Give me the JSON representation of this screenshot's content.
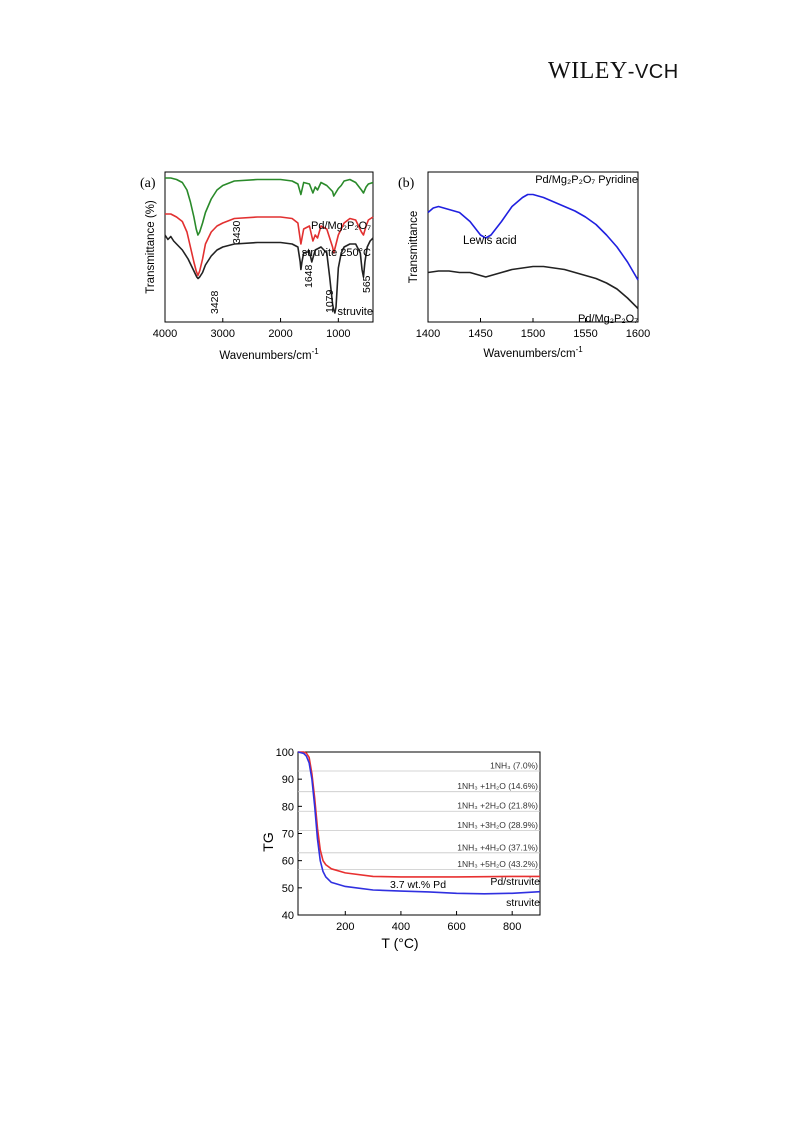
{
  "header": {
    "publisher": "WILEY-VCH",
    "publisher_main": "WILEY",
    "publisher_suffix": "-VCH"
  },
  "chart_data": [
    {
      "type": "line",
      "panel_label": "(a)",
      "xlabel": "Wavenumbers/cm",
      "xlabel_exp": "-1",
      "ylabel": "Transmittance (%)",
      "xlim": [
        4000,
        400
      ],
      "xticks": [
        4000,
        3000,
        2000,
        1000
      ],
      "series": [
        {
          "name": "Pd/Mg₂P₂O₇",
          "color": "#2a8a2a",
          "x": [
            4000,
            3900,
            3800,
            3700,
            3620,
            3560,
            3500,
            3460,
            3430,
            3400,
            3350,
            3300,
            3200,
            3100,
            3000,
            2800,
            2400,
            2000,
            1800,
            1700,
            1648,
            1600,
            1500,
            1440,
            1400,
            1360,
            1300,
            1200,
            1100,
            1079,
            1000,
            950,
            900,
            800,
            700,
            600,
            565,
            520,
            480,
            400
          ],
          "y": [
            96,
            96,
            95,
            93,
            88,
            80,
            70,
            62,
            58,
            60,
            66,
            73,
            82,
            88,
            91,
            94,
            95,
            95,
            94,
            92,
            85,
            93,
            92,
            86,
            90,
            88,
            93,
            91,
            87,
            84,
            89,
            91,
            94,
            95,
            93,
            88,
            86,
            90,
            92,
            93
          ]
        },
        {
          "name": "struvite 250°C",
          "color": "#e23030",
          "x": [
            4000,
            3900,
            3800,
            3700,
            3620,
            3560,
            3500,
            3460,
            3430,
            3400,
            3350,
            3300,
            3200,
            3100,
            3000,
            2800,
            2400,
            2000,
            1800,
            1700,
            1648,
            1600,
            1500,
            1440,
            1400,
            1360,
            1300,
            1200,
            1100,
            1079,
            1000,
            950,
            900,
            800,
            700,
            600,
            565,
            520,
            480,
            400
          ],
          "y": [
            72,
            72,
            70,
            67,
            60,
            50,
            40,
            34,
            31,
            34,
            42,
            52,
            60,
            64,
            66,
            69,
            70,
            70,
            69,
            66,
            52,
            62,
            64,
            54,
            58,
            56,
            64,
            62,
            50,
            46,
            58,
            62,
            66,
            69,
            68,
            60,
            58,
            64,
            68,
            70
          ]
        },
        {
          "name": "struvite",
          "color": "#222222",
          "x": [
            4000,
            3950,
            3900,
            3850,
            3800,
            3700,
            3600,
            3500,
            3450,
            3428,
            3400,
            3350,
            3300,
            3200,
            3100,
            3000,
            2800,
            2400,
            2000,
            1800,
            1700,
            1660,
            1648,
            1630,
            1600,
            1500,
            1460,
            1430,
            1400,
            1300,
            1200,
            1150,
            1100,
            1079,
            1060,
            1040,
            1000,
            950,
            900,
            800,
            700,
            620,
            590,
            565,
            540,
            500,
            450,
            400
          ],
          "y": [
            58,
            55,
            57,
            54,
            52,
            48,
            42,
            34,
            30,
            29,
            30,
            33,
            38,
            44,
            48,
            50,
            52,
            53,
            53,
            52,
            50,
            40,
            35,
            40,
            46,
            47,
            40,
            44,
            48,
            50,
            46,
            30,
            12,
            8,
            6,
            10,
            36,
            46,
            50,
            52,
            52,
            46,
            35,
            30,
            40,
            50,
            54,
            56
          ]
        }
      ],
      "annotations": [
        "3430",
        "3428",
        "1648",
        "1079",
        "565"
      ]
    },
    {
      "type": "line",
      "panel_label": "(b)",
      "xlabel": "Wavenumbers/cm",
      "xlabel_exp": "-1",
      "ylabel": "Transmittance",
      "xlim": [
        1400,
        1600
      ],
      "xticks": [
        1400,
        1450,
        1500,
        1550,
        1600
      ],
      "series": [
        {
          "name": "Pd/Mg₂P₂O₇ Pyridine",
          "color": "#2020e0",
          "x": [
            1400,
            1405,
            1410,
            1420,
            1430,
            1440,
            1450,
            1455,
            1460,
            1470,
            1480,
            1490,
            1495,
            1500,
            1510,
            1520,
            1530,
            1540,
            1550,
            1560,
            1570,
            1580,
            1590,
            1600
          ],
          "y": [
            73,
            76,
            77,
            75,
            73,
            67,
            58,
            56,
            58,
            67,
            77,
            83,
            85,
            85,
            83,
            80,
            77,
            74,
            70,
            65,
            58,
            50,
            40,
            28
          ]
        },
        {
          "name": "Pd/Mg₂P₂O₇",
          "color": "#222222",
          "x": [
            1400,
            1410,
            1420,
            1430,
            1440,
            1450,
            1455,
            1460,
            1470,
            1480,
            1490,
            1500,
            1510,
            1520,
            1530,
            1540,
            1550,
            1560,
            1570,
            1580,
            1590,
            1600
          ],
          "y": [
            33,
            34,
            34,
            33,
            33,
            31,
            30,
            31,
            33,
            35,
            36,
            37,
            37,
            36,
            35,
            33,
            31,
            29,
            26,
            22,
            16,
            9
          ]
        }
      ],
      "annotations": [
        "Lewis acid"
      ]
    },
    {
      "type": "line",
      "xlabel": "T (°C)",
      "ylabel": "TG",
      "xlim": [
        30,
        900
      ],
      "ylim": [
        40,
        100
      ],
      "xticks": [
        200,
        400,
        600,
        800
      ],
      "yticks": [
        40,
        50,
        60,
        70,
        80,
        90,
        100
      ],
      "reference_lines": [
        {
          "y": 93.0,
          "label": "1NH₃ (7.0%)"
        },
        {
          "y": 85.4,
          "label": "1NH₃ +1H₂O (14.6%)"
        },
        {
          "y": 78.2,
          "label": "1NH₃ +2H₂O (21.8%)"
        },
        {
          "y": 71.1,
          "label": "1NH₃ +3H₂O (28.9%)"
        },
        {
          "y": 62.9,
          "label": "1NH₃ +4H₂O (37.1%)"
        },
        {
          "y": 56.8,
          "label": "1NH₃ +5H₂O (43.2%)"
        }
      ],
      "series": [
        {
          "name": "Pd/struvite",
          "color": "#e83030",
          "x": [
            30,
            50,
            60,
            70,
            80,
            90,
            100,
            110,
            120,
            130,
            150,
            200,
            300,
            400,
            500,
            600,
            700,
            800,
            900
          ],
          "y": [
            100,
            100,
            99.6,
            98,
            92,
            83,
            72,
            64,
            60,
            58.5,
            57,
            55.5,
            54.2,
            54,
            54,
            54,
            54.1,
            54.2,
            54.2
          ]
        },
        {
          "name": "struvite",
          "color": "#3030e0",
          "x": [
            30,
            50,
            60,
            70,
            80,
            90,
            100,
            110,
            120,
            130,
            150,
            200,
            300,
            400,
            500,
            600,
            700,
            800,
            900
          ],
          "y": [
            100,
            99.5,
            98.5,
            96,
            90,
            80,
            68,
            60,
            56,
            54,
            52,
            50.5,
            49.2,
            48.8,
            48.5,
            48,
            47.8,
            48,
            48.6
          ]
        }
      ],
      "annotations": [
        "3.7 wt.% Pd"
      ]
    }
  ]
}
